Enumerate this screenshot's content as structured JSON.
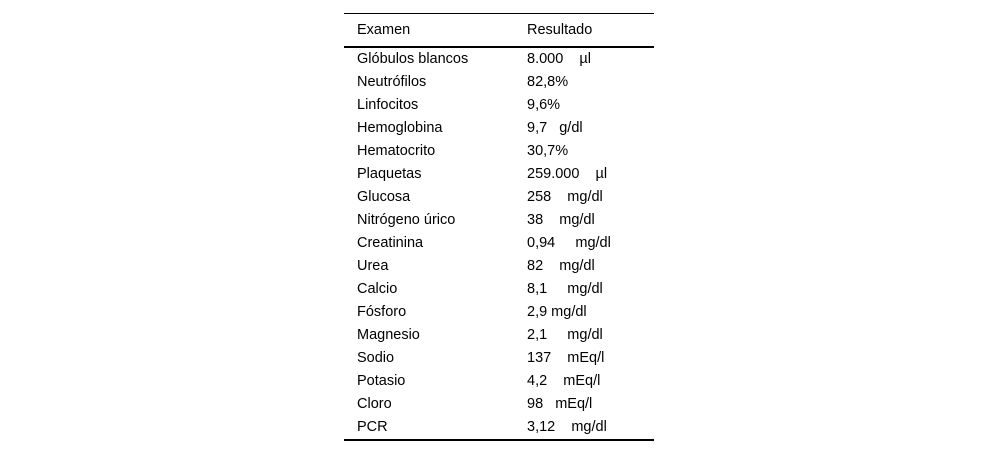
{
  "page": {
    "background_color": "#ffffff",
    "text_color": "#000000",
    "rule_color": "#000000"
  },
  "table": {
    "headers": [
      "Examen",
      "Resultado"
    ],
    "rows": [
      {
        "examen": "Glóbulos blancos",
        "resultado": "8.000    µl"
      },
      {
        "examen": "Neutrófilos",
        "resultado": "82,8%"
      },
      {
        "examen": "Linfocitos",
        "resultado": "9,6%"
      },
      {
        "examen": "Hemoglobina",
        "resultado": "9,7   g/dl"
      },
      {
        "examen": "Hematocrito",
        "resultado": "30,7%"
      },
      {
        "examen": "Plaquetas",
        "resultado": "259.000    µl"
      },
      {
        "examen": "Glucosa",
        "resultado": "258    mg/dl"
      },
      {
        "examen": "Nitrógeno úrico",
        "resultado": "38    mg/dl"
      },
      {
        "examen": "Creatinina",
        "resultado": "0,94     mg/dl"
      },
      {
        "examen": "Urea",
        "resultado": "82    mg/dl"
      },
      {
        "examen": "Calcio",
        "resultado": "8,1     mg/dl"
      },
      {
        "examen": "Fósforo",
        "resultado": "2,9 mg/dl"
      },
      {
        "examen": "Magnesio",
        "resultado": "2,1     mg/dl"
      },
      {
        "examen": "Sodio",
        "resultado": "137    mEq/l"
      },
      {
        "examen": "Potasio",
        "resultado": "4,2    mEq/l"
      },
      {
        "examen": "Cloro",
        "resultado": "98   mEq/l"
      },
      {
        "examen": "PCR",
        "resultado": "3,12    mg/dl"
      }
    ]
  }
}
